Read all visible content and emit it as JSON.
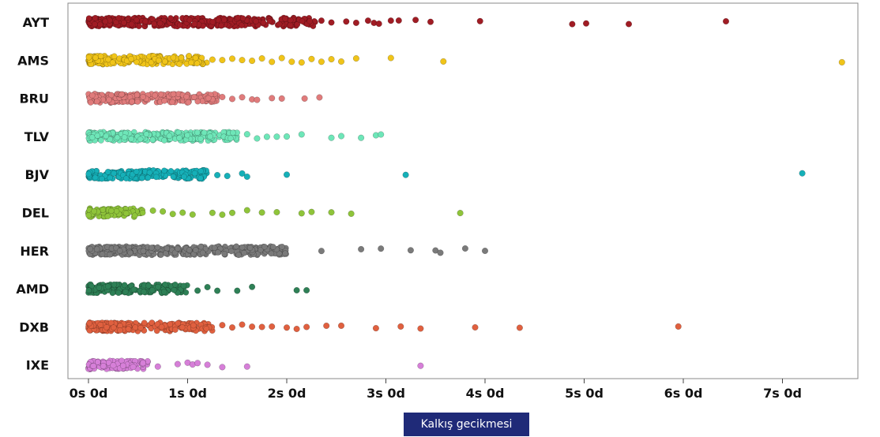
{
  "chart_data": {
    "type": "scatter",
    "style": "strip plot (jittered categorical scatter)",
    "title": "",
    "xlabel": "Kalkış gecikmesi",
    "ylabel": "",
    "x_unit": "days",
    "xlim": [
      -0.2,
      7.9
    ],
    "xticks": [
      0,
      1,
      2,
      3,
      4,
      5,
      6,
      7
    ],
    "xtick_labels": [
      "0s 0d",
      "1s 0d",
      "2s 0d",
      "3s 0d",
      "4s 0d",
      "5s 0d",
      "6s 0d",
      "7s 0d"
    ],
    "grid": false,
    "legend": "none",
    "categories": [
      "AYT",
      "AMS",
      "BRU",
      "TLV",
      "BJV",
      "DEL",
      "HER",
      "AMD",
      "DXB",
      "IXE"
    ],
    "series": [
      {
        "category": "AYT",
        "color": "#a01c24",
        "dense_range": [
          0,
          2.3
        ],
        "x": [
          2.35,
          2.45,
          2.6,
          2.7,
          2.82,
          2.88,
          2.93,
          3.05,
          3.13,
          3.3,
          3.45,
          3.95,
          4.88,
          5.02,
          5.45,
          6.43
        ]
      },
      {
        "category": "AMS",
        "color": "#f0c419",
        "dense_range": [
          0,
          1.2
        ],
        "x": [
          1.25,
          1.35,
          1.45,
          1.55,
          1.65,
          1.75,
          1.85,
          1.95,
          2.05,
          2.15,
          2.25,
          2.35,
          2.45,
          2.55,
          2.7,
          3.05,
          3.58,
          7.6
        ]
      },
      {
        "category": "BRU",
        "color": "#e07b7b",
        "dense_range": [
          0,
          1.3
        ],
        "x": [
          1.35,
          1.45,
          1.55,
          1.65,
          1.7,
          1.85,
          1.95,
          2.18,
          2.33
        ]
      },
      {
        "category": "TLV",
        "color": "#6ee6b8",
        "dense_range": [
          0,
          1.5
        ],
        "x": [
          1.6,
          1.7,
          1.8,
          1.9,
          2.0,
          2.15,
          2.45,
          2.55,
          2.75,
          2.9,
          2.95
        ]
      },
      {
        "category": "BJV",
        "color": "#16b0b8",
        "dense_range": [
          0,
          1.2
        ],
        "x": [
          1.3,
          1.4,
          1.55,
          1.6,
          2.0,
          3.2,
          7.2
        ]
      },
      {
        "category": "DEL",
        "color": "#8fc43a",
        "dense_range": [
          0,
          0.55
        ],
        "x": [
          0.65,
          0.75,
          0.85,
          0.95,
          1.05,
          1.25,
          1.35,
          1.45,
          1.6,
          1.75,
          1.9,
          2.15,
          2.25,
          2.45,
          2.65,
          3.75
        ]
      },
      {
        "category": "HER",
        "color": "#7a7a7a",
        "dense_range": [
          0,
          2.0
        ],
        "x": [
          2.35,
          2.75,
          2.95,
          3.25,
          3.5,
          3.55,
          3.8,
          4.0
        ]
      },
      {
        "category": "AMD",
        "color": "#2e8056",
        "dense_range": [
          0,
          1.0
        ],
        "x": [
          1.1,
          1.2,
          1.3,
          1.5,
          1.65,
          2.1,
          2.2
        ]
      },
      {
        "category": "DXB",
        "color": "#e0603f",
        "dense_range": [
          0,
          1.25
        ],
        "x": [
          1.35,
          1.45,
          1.55,
          1.65,
          1.75,
          1.85,
          2.0,
          2.1,
          2.2,
          2.4,
          2.55,
          2.9,
          3.15,
          3.35,
          3.9,
          4.35,
          5.95
        ]
      },
      {
        "category": "IXE",
        "color": "#d67fd8",
        "dense_range": [
          0,
          0.6
        ],
        "x": [
          0.05,
          0.15,
          0.25,
          0.35,
          0.45,
          0.55,
          0.7,
          0.9,
          1.0,
          1.05,
          1.1,
          1.2,
          1.35,
          1.6,
          3.35
        ]
      }
    ]
  }
}
